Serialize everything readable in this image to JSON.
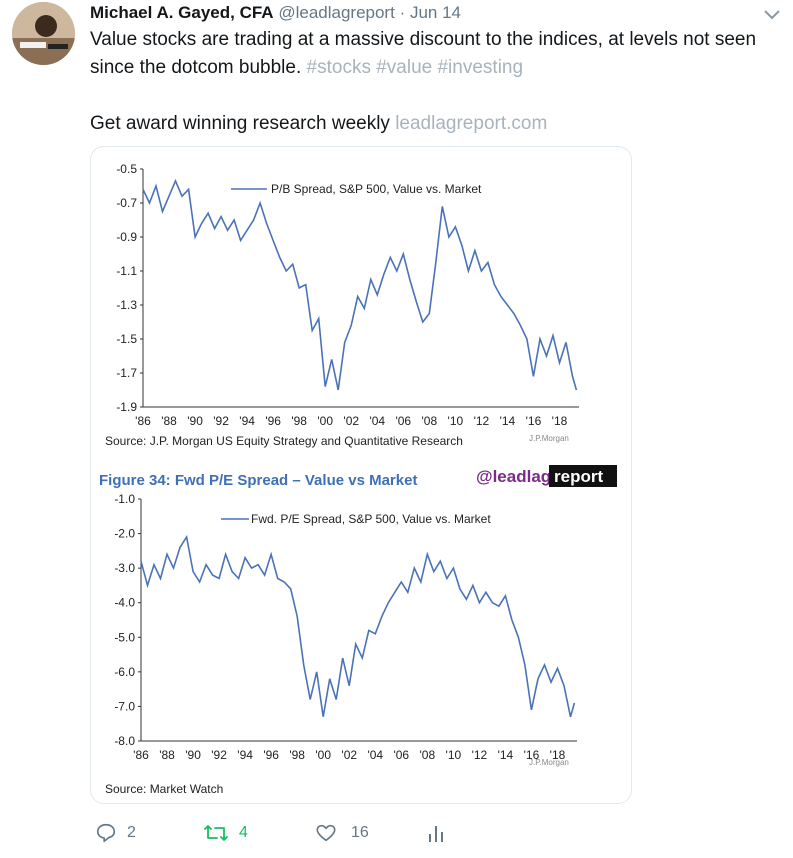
{
  "tweet": {
    "author_name": "Michael A. Gayed, CFA",
    "handle": "@leadlagreport",
    "separator": "·",
    "date": "Jun 14",
    "text_line1": "Value stocks are trading at a massive discount to the indices, at levels not seen",
    "text_line2_plain": "since the dotcom bubble.",
    "hashtags": "#stocks #value #investing",
    "text_line3_plain": "Get award winning research weekly",
    "link": "leadlagreport.com"
  },
  "actions": {
    "reply_icon": "reply-icon",
    "reply_count": "2",
    "retweet_icon": "retweet-icon",
    "retweet_count": "4",
    "retweet_color": "#17bf63",
    "like_icon": "heart-icon",
    "like_count": "16",
    "analytics_icon": "analytics-icon",
    "muted_color": "#657786"
  },
  "media": {
    "watermark_prefix": "@leadlag",
    "watermark_suffix": "report",
    "figure_title": "Figure 34: Fwd P/E Spread – Value vs Market",
    "brand_text": "J.P.Morgan"
  },
  "chart_data": [
    {
      "type": "line",
      "title": "",
      "series": [
        {
          "name": "P/B Spread, S&P 500, Value vs. Market",
          "color": "#4a72b8"
        }
      ],
      "x_tick_labels": [
        "'86",
        "'88",
        "'90",
        "'92",
        "'94",
        "'96",
        "'98",
        "'00",
        "'02",
        "'04",
        "'06",
        "'08",
        "'10",
        "'12",
        "'14",
        "'16",
        "'18"
      ],
      "y_tick_labels": [
        "-0.5",
        "-0.7",
        "-0.9",
        "-1.1",
        "-1.3",
        "-1.5",
        "-1.7",
        "-1.9"
      ],
      "ylim": [
        -1.9,
        -0.5
      ],
      "xlim": [
        1986,
        2019.5
      ],
      "source": "Source: J.P. Morgan US Equity Strategy and Quantitative Research",
      "points": [
        [
          1986.0,
          -0.62
        ],
        [
          1986.5,
          -0.7
        ],
        [
          1987.0,
          -0.6
        ],
        [
          1987.5,
          -0.75
        ],
        [
          1988.0,
          -0.66
        ],
        [
          1988.5,
          -0.57
        ],
        [
          1989.0,
          -0.66
        ],
        [
          1989.5,
          -0.62
        ],
        [
          1990.0,
          -0.9
        ],
        [
          1990.5,
          -0.82
        ],
        [
          1991.0,
          -0.76
        ],
        [
          1991.5,
          -0.85
        ],
        [
          1992.0,
          -0.78
        ],
        [
          1992.5,
          -0.86
        ],
        [
          1993.0,
          -0.8
        ],
        [
          1993.5,
          -0.92
        ],
        [
          1994.0,
          -0.86
        ],
        [
          1994.5,
          -0.8
        ],
        [
          1995.0,
          -0.7
        ],
        [
          1995.5,
          -0.82
        ],
        [
          1996.0,
          -0.92
        ],
        [
          1996.5,
          -1.02
        ],
        [
          1997.0,
          -1.1
        ],
        [
          1997.5,
          -1.06
        ],
        [
          1998.0,
          -1.2
        ],
        [
          1998.5,
          -1.18
        ],
        [
          1999.0,
          -1.45
        ],
        [
          1999.5,
          -1.38
        ],
        [
          2000.0,
          -1.78
        ],
        [
          2000.5,
          -1.62
        ],
        [
          2001.0,
          -1.8
        ],
        [
          2001.5,
          -1.52
        ],
        [
          2002.0,
          -1.42
        ],
        [
          2002.5,
          -1.25
        ],
        [
          2003.0,
          -1.32
        ],
        [
          2003.5,
          -1.15
        ],
        [
          2004.0,
          -1.24
        ],
        [
          2004.5,
          -1.12
        ],
        [
          2005.0,
          -1.02
        ],
        [
          2005.5,
          -1.1
        ],
        [
          2006.0,
          -1.0
        ],
        [
          2006.5,
          -1.15
        ],
        [
          2007.0,
          -1.28
        ],
        [
          2007.5,
          -1.4
        ],
        [
          2008.0,
          -1.35
        ],
        [
          2008.5,
          -1.05
        ],
        [
          2009.0,
          -0.72
        ],
        [
          2009.5,
          -0.9
        ],
        [
          2010.0,
          -0.84
        ],
        [
          2010.5,
          -0.95
        ],
        [
          2011.0,
          -1.1
        ],
        [
          2011.5,
          -0.98
        ],
        [
          2012.0,
          -1.1
        ],
        [
          2012.5,
          -1.05
        ],
        [
          2013.0,
          -1.18
        ],
        [
          2013.5,
          -1.25
        ],
        [
          2014.0,
          -1.3
        ],
        [
          2014.5,
          -1.35
        ],
        [
          2015.0,
          -1.42
        ],
        [
          2015.5,
          -1.5
        ],
        [
          2016.0,
          -1.72
        ],
        [
          2016.5,
          -1.5
        ],
        [
          2017.0,
          -1.6
        ],
        [
          2017.5,
          -1.48
        ],
        [
          2018.0,
          -1.64
        ],
        [
          2018.5,
          -1.52
        ],
        [
          2019.0,
          -1.72
        ],
        [
          2019.3,
          -1.8
        ]
      ]
    },
    {
      "type": "line",
      "title": "Figure 34: Fwd P/E Spread – Value vs Market",
      "series": [
        {
          "name": "Fwd. P/E Spread, S&P 500, Value vs. Market",
          "color": "#4a72b8"
        }
      ],
      "x_tick_labels": [
        "'86",
        "'88",
        "'90",
        "'92",
        "'94",
        "'96",
        "'98",
        "'00",
        "'02",
        "'04",
        "'06",
        "'08",
        "'10",
        "'12",
        "'14",
        "'16",
        "'18"
      ],
      "y_tick_labels": [
        "-1.0",
        "-2.0",
        "-3.0",
        "-4.0",
        "-5.0",
        "-6.0",
        "-7.0",
        "-8.0"
      ],
      "ylim": [
        -8.0,
        -1.0
      ],
      "xlim": [
        1986,
        2019.5
      ],
      "source": "Source: Market Watch",
      "points": [
        [
          1986.0,
          -2.8
        ],
        [
          1986.5,
          -3.5
        ],
        [
          1987.0,
          -2.9
        ],
        [
          1987.5,
          -3.3
        ],
        [
          1988.0,
          -2.6
        ],
        [
          1988.5,
          -3.0
        ],
        [
          1989.0,
          -2.4
        ],
        [
          1989.5,
          -2.1
        ],
        [
          1990.0,
          -3.1
        ],
        [
          1990.5,
          -3.4
        ],
        [
          1991.0,
          -2.9
        ],
        [
          1991.5,
          -3.2
        ],
        [
          1992.0,
          -3.3
        ],
        [
          1992.5,
          -2.6
        ],
        [
          1993.0,
          -3.1
        ],
        [
          1993.5,
          -3.3
        ],
        [
          1994.0,
          -2.7
        ],
        [
          1994.5,
          -3.0
        ],
        [
          1995.0,
          -2.9
        ],
        [
          1995.5,
          -3.2
        ],
        [
          1996.0,
          -2.6
        ],
        [
          1996.5,
          -3.3
        ],
        [
          1997.0,
          -3.4
        ],
        [
          1997.5,
          -3.6
        ],
        [
          1998.0,
          -4.4
        ],
        [
          1998.5,
          -5.8
        ],
        [
          1999.0,
          -6.8
        ],
        [
          1999.5,
          -6.0
        ],
        [
          2000.0,
          -7.3
        ],
        [
          2000.5,
          -6.2
        ],
        [
          2001.0,
          -6.8
        ],
        [
          2001.5,
          -5.6
        ],
        [
          2002.0,
          -6.4
        ],
        [
          2002.5,
          -5.2
        ],
        [
          2003.0,
          -5.6
        ],
        [
          2003.5,
          -4.8
        ],
        [
          2004.0,
          -4.9
        ],
        [
          2004.5,
          -4.4
        ],
        [
          2005.0,
          -4.0
        ],
        [
          2005.5,
          -3.7
        ],
        [
          2006.0,
          -3.4
        ],
        [
          2006.5,
          -3.7
        ],
        [
          2007.0,
          -3.0
        ],
        [
          2007.5,
          -3.4
        ],
        [
          2008.0,
          -2.6
        ],
        [
          2008.5,
          -3.1
        ],
        [
          2009.0,
          -2.8
        ],
        [
          2009.5,
          -3.3
        ],
        [
          2010.0,
          -3.0
        ],
        [
          2010.5,
          -3.6
        ],
        [
          2011.0,
          -3.9
        ],
        [
          2011.5,
          -3.5
        ],
        [
          2012.0,
          -4.0
        ],
        [
          2012.5,
          -3.7
        ],
        [
          2013.0,
          -4.0
        ],
        [
          2013.5,
          -4.1
        ],
        [
          2014.0,
          -3.8
        ],
        [
          2014.5,
          -4.5
        ],
        [
          2015.0,
          -5.0
        ],
        [
          2015.5,
          -5.8
        ],
        [
          2016.0,
          -7.1
        ],
        [
          2016.5,
          -6.2
        ],
        [
          2017.0,
          -5.8
        ],
        [
          2017.5,
          -6.3
        ],
        [
          2018.0,
          -5.9
        ],
        [
          2018.5,
          -6.4
        ],
        [
          2019.0,
          -7.3
        ],
        [
          2019.3,
          -6.9
        ]
      ]
    }
  ]
}
